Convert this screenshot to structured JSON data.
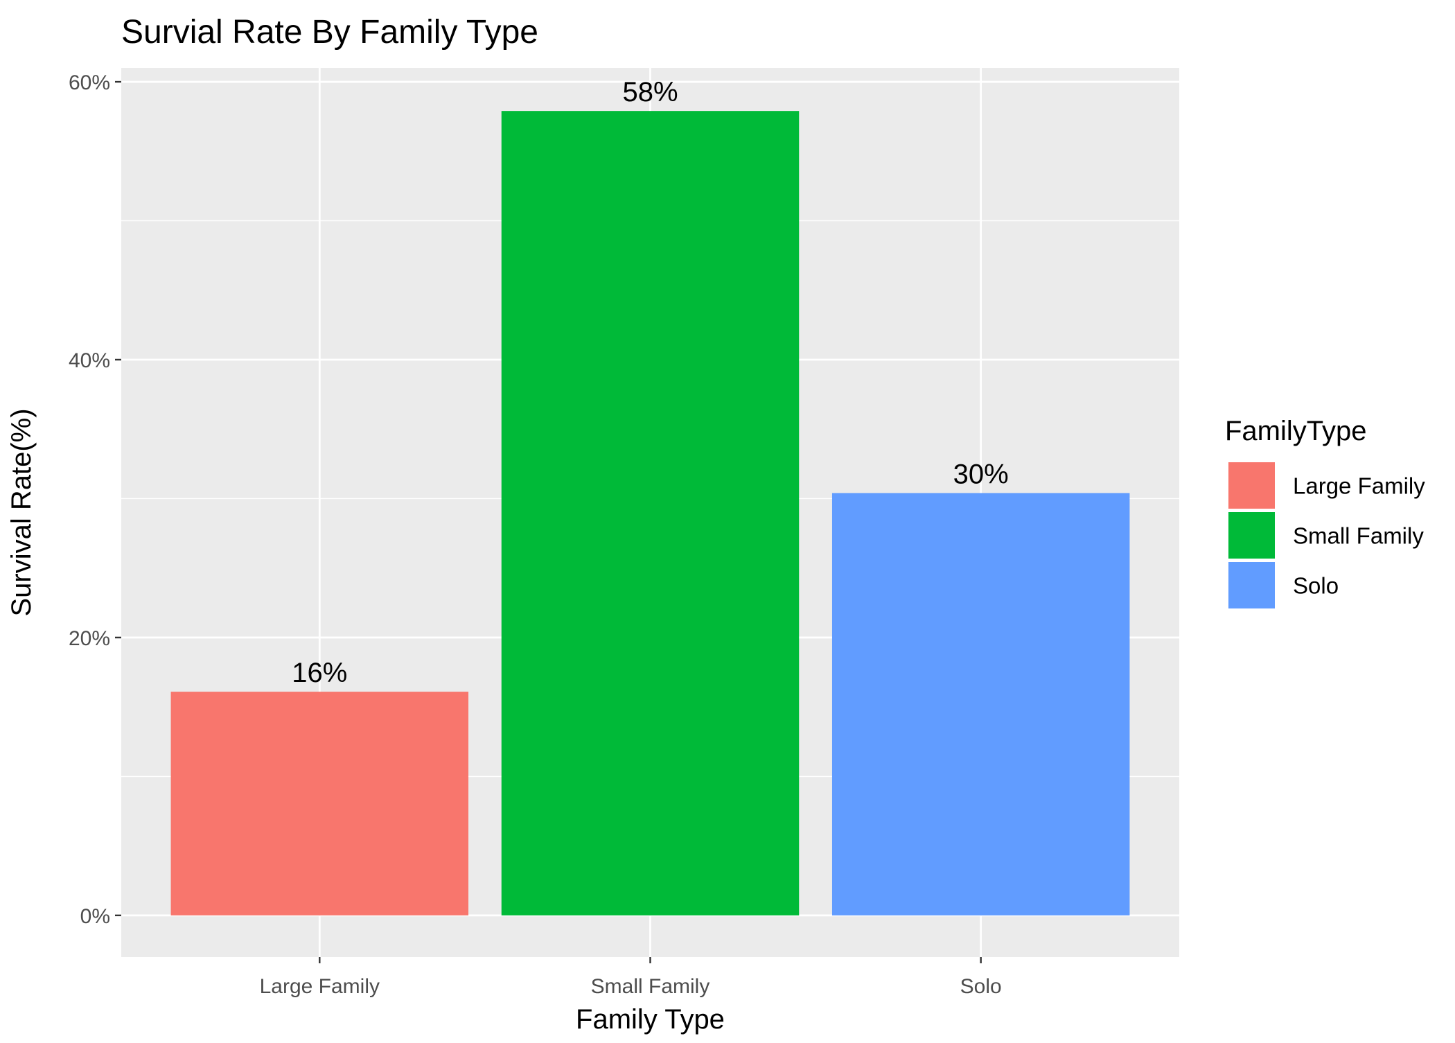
{
  "chart_data": {
    "type": "bar",
    "title": "Survial Rate By Family Type",
    "xlabel": "Family Type",
    "ylabel": "Survival Rate(%)",
    "categories": [
      "Large Family",
      "Small Family",
      "Solo"
    ],
    "values": [
      16.1,
      57.9,
      30.4
    ],
    "value_labels": [
      "16%",
      "58%",
      "30%"
    ],
    "colors": [
      "#F8766D",
      "#00BA38",
      "#619CFF"
    ],
    "ylim": [
      -3,
      61
    ],
    "yticks": [
      0,
      20,
      40,
      60
    ],
    "ytick_labels": [
      "0%",
      "20%",
      "40%",
      "60%"
    ],
    "grid": true,
    "legend": {
      "title": "FamilyType",
      "position": "right",
      "entries": [
        "Large Family",
        "Small Family",
        "Solo"
      ]
    },
    "panel_background": "#EBEBEB",
    "grid_color": "#FFFFFF"
  }
}
